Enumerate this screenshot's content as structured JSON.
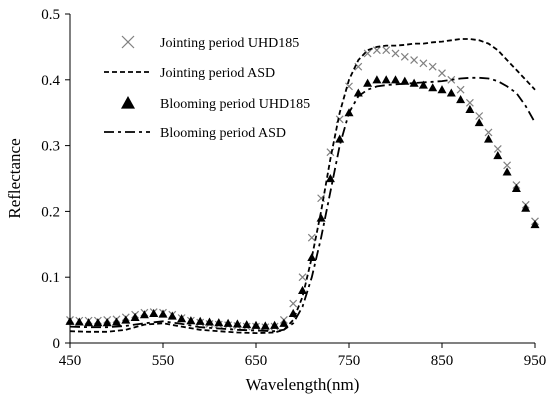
{
  "chart_data": {
    "type": "line",
    "xlabel": "Wavelength(nm)",
    "ylabel": "Reflectance",
    "xlim": [
      450,
      950
    ],
    "ylim": [
      0,
      0.5
    ],
    "xticks": [
      "450",
      "550",
      "650",
      "750",
      "850",
      "950"
    ],
    "yticks": [
      "0",
      "0.1",
      "0.2",
      "0.3",
      "0.4",
      "0.5"
    ],
    "grid": false,
    "legend_position": "top-left",
    "series": [
      {
        "name": "Jointing period UHD185",
        "marker": "x",
        "color": "#808080",
        "x": [
          450,
          460,
          470,
          480,
          490,
          500,
          510,
          520,
          530,
          540,
          550,
          560,
          570,
          580,
          590,
          600,
          610,
          620,
          630,
          640,
          650,
          660,
          670,
          680,
          690,
          700,
          710,
          720,
          730,
          740,
          750,
          760,
          770,
          780,
          790,
          800,
          810,
          820,
          830,
          840,
          850,
          860,
          870,
          880,
          890,
          900,
          910,
          920,
          930,
          940,
          950
        ],
        "y": [
          0.035,
          0.034,
          0.034,
          0.034,
          0.035,
          0.036,
          0.039,
          0.043,
          0.046,
          0.047,
          0.046,
          0.043,
          0.038,
          0.034,
          0.031,
          0.029,
          0.028,
          0.027,
          0.026,
          0.025,
          0.025,
          0.024,
          0.025,
          0.035,
          0.06,
          0.1,
          0.16,
          0.22,
          0.29,
          0.34,
          0.39,
          0.42,
          0.44,
          0.445,
          0.445,
          0.44,
          0.435,
          0.43,
          0.425,
          0.42,
          0.41,
          0.4,
          0.385,
          0.365,
          0.345,
          0.32,
          0.295,
          0.27,
          0.24,
          0.21,
          0.185
        ]
      },
      {
        "name": "Jointing period ASD",
        "line": "dash",
        "color": "#000000",
        "x": [
          450,
          470,
          490,
          510,
          530,
          550,
          570,
          590,
          610,
          630,
          650,
          670,
          680,
          690,
          700,
          710,
          720,
          730,
          740,
          750,
          760,
          770,
          780,
          790,
          800,
          810,
          820,
          830,
          840,
          850,
          860,
          870,
          880,
          890,
          900,
          910,
          920,
          930,
          940,
          950
        ],
        "y": [
          0.018,
          0.017,
          0.017,
          0.02,
          0.028,
          0.03,
          0.025,
          0.02,
          0.018,
          0.016,
          0.015,
          0.016,
          0.02,
          0.035,
          0.07,
          0.13,
          0.2,
          0.28,
          0.35,
          0.4,
          0.43,
          0.445,
          0.45,
          0.452,
          0.452,
          0.453,
          0.455,
          0.455,
          0.457,
          0.458,
          0.46,
          0.462,
          0.462,
          0.46,
          0.455,
          0.445,
          0.43,
          0.415,
          0.4,
          0.385
        ]
      },
      {
        "name": "Blooming period UHD185",
        "marker": "triangle",
        "color": "#000000",
        "x": [
          450,
          460,
          470,
          480,
          490,
          500,
          510,
          520,
          530,
          540,
          550,
          560,
          570,
          580,
          590,
          600,
          610,
          620,
          630,
          640,
          650,
          660,
          670,
          680,
          690,
          700,
          710,
          720,
          730,
          740,
          750,
          760,
          770,
          780,
          790,
          800,
          810,
          820,
          830,
          840,
          850,
          860,
          870,
          880,
          890,
          900,
          910,
          920,
          930,
          940,
          950
        ],
        "y": [
          0.033,
          0.032,
          0.031,
          0.031,
          0.031,
          0.032,
          0.035,
          0.039,
          0.043,
          0.045,
          0.044,
          0.041,
          0.037,
          0.034,
          0.033,
          0.032,
          0.031,
          0.03,
          0.029,
          0.028,
          0.027,
          0.026,
          0.027,
          0.03,
          0.045,
          0.08,
          0.13,
          0.19,
          0.25,
          0.31,
          0.35,
          0.38,
          0.395,
          0.4,
          0.4,
          0.4,
          0.398,
          0.395,
          0.392,
          0.388,
          0.385,
          0.38,
          0.37,
          0.355,
          0.335,
          0.31,
          0.285,
          0.26,
          0.235,
          0.205,
          0.18
        ]
      },
      {
        "name": "Blooming period ASD",
        "line": "dashdot",
        "color": "#000000",
        "x": [
          450,
          470,
          490,
          510,
          530,
          550,
          570,
          590,
          610,
          630,
          650,
          670,
          680,
          690,
          700,
          710,
          720,
          730,
          740,
          750,
          760,
          770,
          780,
          790,
          800,
          810,
          820,
          830,
          840,
          850,
          860,
          870,
          880,
          890,
          900,
          910,
          920,
          930,
          940,
          950
        ],
        "y": [
          0.025,
          0.024,
          0.024,
          0.026,
          0.03,
          0.033,
          0.029,
          0.024,
          0.022,
          0.02,
          0.019,
          0.018,
          0.02,
          0.03,
          0.055,
          0.1,
          0.16,
          0.23,
          0.3,
          0.35,
          0.375,
          0.385,
          0.39,
          0.392,
          0.393,
          0.394,
          0.395,
          0.396,
          0.397,
          0.398,
          0.4,
          0.402,
          0.403,
          0.403,
          0.402,
          0.398,
          0.39,
          0.38,
          0.36,
          0.335
        ]
      }
    ]
  }
}
